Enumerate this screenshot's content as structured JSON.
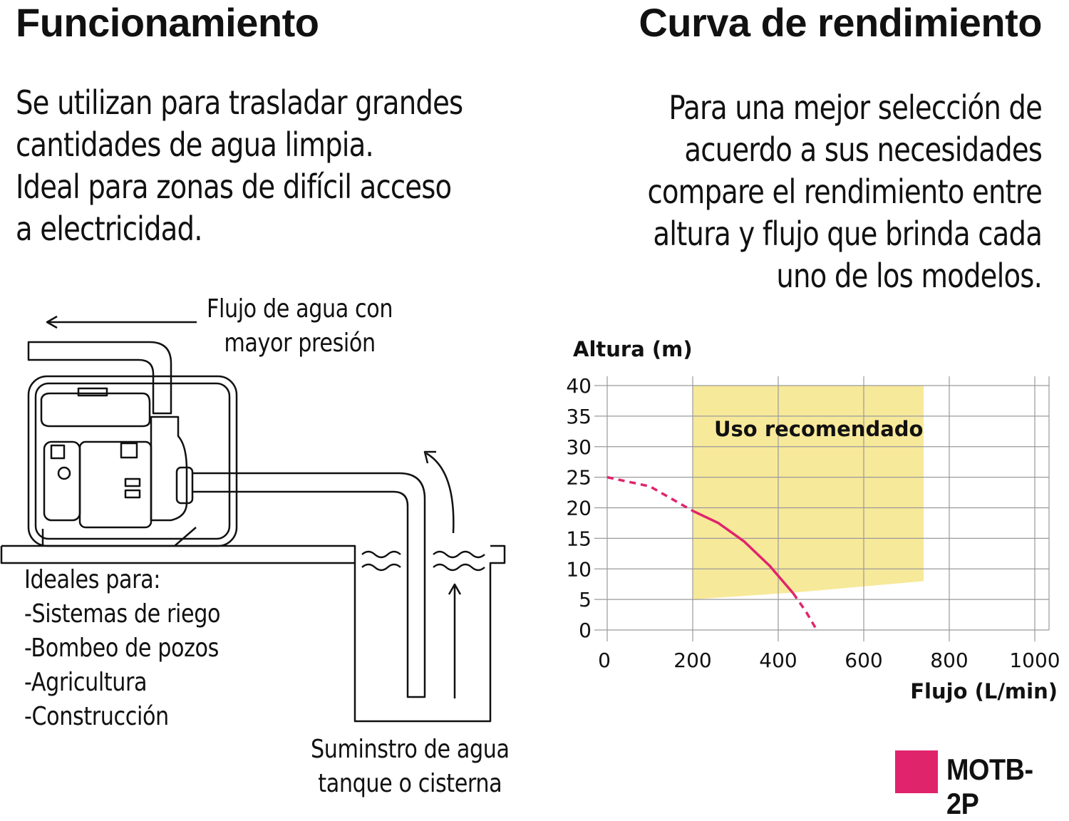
{
  "left_title": "Funcionamiento",
  "right_title": "Curva de rendimiento",
  "left_paragraph": [
    "Se utilizan para trasladar grandes",
    "cantidades de agua limpia.",
    "Ideal para zonas de difícil acceso",
    "a electricidad."
  ],
  "right_paragraph": [
    "Para una mejor selección de",
    "acuerdo a sus necesidades",
    "compare el rendimiento entre",
    "altura y flujo que brinda cada",
    "uno de los modelos."
  ],
  "diagram": {
    "flow_label": [
      "Flujo de agua con",
      "mayor presión"
    ],
    "supply_label": [
      "Suminstro de agua",
      "tanque o cisterna"
    ],
    "ideal_for": [
      "Ideales para:",
      "-Sistemas de riego",
      "-Bombeo de pozos",
      "-Agricultura",
      "-Construcción"
    ]
  },
  "chart_data": {
    "type": "line",
    "ylabel": "Altura (m)",
    "xlabel": "Flujo (L/min)",
    "xlim": [
      0,
      1000
    ],
    "ylim": [
      0,
      40
    ],
    "x_ticks": [
      "0",
      "200",
      "400",
      "600",
      "800",
      "1000"
    ],
    "y_ticks": [
      "40",
      "35",
      "30",
      "25",
      "20",
      "15",
      "10",
      "5",
      "0"
    ],
    "grid": true,
    "recommended_zone": {
      "label": "Uso recomendado",
      "color": "#f7e99a",
      "polygon": [
        [
          200,
          40
        ],
        [
          740,
          40
        ],
        [
          740,
          8
        ],
        [
          450,
          6.2
        ],
        [
          200,
          5
        ],
        [
          200,
          40
        ]
      ]
    },
    "series": [
      {
        "name": "MOTB-2P",
        "color": "#e0246c",
        "dashed_before": [
          [
            0,
            25
          ],
          [
            100,
            23.5
          ],
          [
            200,
            19.5
          ]
        ],
        "solid": [
          [
            200,
            19.5
          ],
          [
            260,
            17.5
          ],
          [
            320,
            14.5
          ],
          [
            380,
            10.5
          ],
          [
            435,
            6
          ]
        ],
        "dashed_after": [
          [
            435,
            6
          ],
          [
            465,
            3
          ],
          [
            490,
            0
          ]
        ]
      }
    ],
    "legend": "bottom-right"
  }
}
